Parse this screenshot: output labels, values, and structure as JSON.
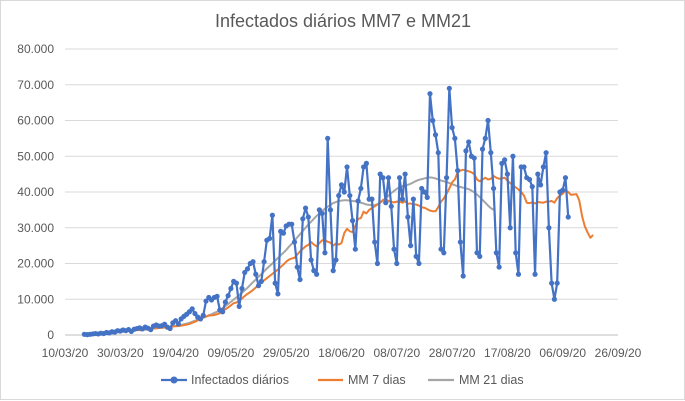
{
  "chart_data": {
    "type": "line",
    "title": "Infectados diários MM7 e MM21",
    "xlabel": "",
    "ylabel": "",
    "x_tick_labels": [
      "10/03/20",
      "30/03/20",
      "19/04/20",
      "09/05/20",
      "29/05/20",
      "18/06/20",
      "08/07/20",
      "28/07/20",
      "17/08/20",
      "06/09/20",
      "26/09/20"
    ],
    "y_tick_labels": [
      "0",
      "10.000",
      "20.000",
      "30.000",
      "40.000",
      "50.000",
      "60.000",
      "70.000",
      "80.000"
    ],
    "ylim": [
      0,
      80000
    ],
    "x_range": [
      "2020-03-10",
      "2020-09-26"
    ],
    "grid": true,
    "legend_position": "bottom",
    "colors": {
      "daily": "#4472C4",
      "mm7": "#ED7D31",
      "mm21": "#A5A5A5"
    },
    "series": [
      {
        "name": "Infectados diários",
        "marker": "circle",
        "start_date": "2020-03-17",
        "values": [
          200,
          100,
          200,
          300,
          400,
          300,
          500,
          400,
          700,
          600,
          900,
          800,
          1200,
          1100,
          1400,
          1200,
          1500,
          1000,
          1600,
          1800,
          2000,
          1700,
          2200,
          1900,
          1500,
          2500,
          2800,
          2500,
          2600,
          3000,
          2200,
          1800,
          3400,
          4000,
          3100,
          4500,
          5200,
          5800,
          6500,
          7300,
          6000,
          5000,
          4500,
          5500,
          9500,
          10500,
          9800,
          10500,
          10800,
          7000,
          6500,
          9200,
          11000,
          13000,
          15000,
          14500,
          8000,
          13000,
          17500,
          18500,
          20000,
          20500,
          17000,
          13800,
          15000,
          20500,
          26500,
          27000,
          33500,
          14500,
          11500,
          29000,
          28500,
          30500,
          31000,
          31000,
          26000,
          19000,
          15500,
          32500,
          35500,
          33000,
          21000,
          18000,
          17000,
          35000,
          34000,
          23000,
          55000,
          35000,
          18000,
          21000,
          39000,
          42000,
          40000,
          47000,
          39000,
          32000,
          24000,
          37500,
          41000,
          47000,
          48000,
          38000,
          38000,
          26000,
          20000,
          45000,
          44000,
          37000,
          44000,
          36000,
          24000,
          20000,
          44000,
          38000,
          45000,
          33000,
          25000,
          38000,
          22000,
          20000,
          41000,
          40000,
          38500,
          67500,
          60000,
          56000,
          51000,
          24000,
          23000,
          44000,
          69000,
          58000,
          55000,
          46000,
          26000,
          16500,
          51500,
          54000,
          50000,
          49500,
          23000,
          22000,
          52000,
          55000,
          60000,
          51000,
          41000,
          23000,
          19000,
          48000,
          49000,
          45000,
          30000,
          50000,
          23000,
          17000,
          47000,
          47000,
          44000,
          43500,
          41500,
          17000,
          45000,
          42000,
          47000,
          51000,
          30000,
          14500,
          10000,
          14500,
          40000,
          40500,
          44000,
          33000
        ]
      },
      {
        "name": "MM 7 dias",
        "start_date": "2020-03-23",
        "values": [
          300,
          350,
          400,
          450,
          550,
          650,
          750,
          850,
          950,
          1050,
          1150,
          1200,
          1300,
          1350,
          1400,
          1500,
          1600,
          1700,
          1750,
          1800,
          1900,
          2000,
          2050,
          2100,
          2200,
          2300,
          2400,
          2450,
          2500,
          2600,
          2750,
          2900,
          3100,
          3400,
          3700,
          4100,
          4500,
          4900,
          5200,
          5400,
          5500,
          5600,
          5800,
          6100,
          6700,
          7200,
          7700,
          8300,
          8900,
          9100,
          9500,
          10200,
          10900,
          11500,
          12000,
          12600,
          13300,
          13900,
          14600,
          15300,
          15900,
          16500,
          17100,
          17700,
          18300,
          19000,
          19700,
          20500,
          21100,
          21400,
          21600,
          22500,
          23400,
          24100,
          24800,
          25200,
          26000,
          25300,
          24800,
          25700,
          26500,
          26500,
          26100,
          25800,
          25000,
          25600,
          25300,
          25700,
          28500,
          29700,
          29000,
          28800,
          30500,
          32500,
          32700,
          34500,
          34000,
          35000,
          35500,
          36000,
          36500,
          37000,
          37800,
          38000,
          37500,
          37200,
          37100,
          37300,
          37300,
          37000,
          37400,
          36700,
          36800,
          36500,
          36500,
          36200,
          35700,
          35600,
          35200,
          34800,
          34600,
          34600,
          35800,
          37300,
          38200,
          39500,
          41000,
          42700,
          43500,
          45500,
          46000,
          46200,
          46000,
          45800,
          45500,
          45000,
          43500,
          43000,
          43500,
          44000,
          43500,
          43700,
          44500,
          44000,
          43700,
          43800,
          44000,
          43200,
          42500,
          41800,
          41300,
          40700,
          40000,
          39000,
          37000,
          36900,
          37100,
          36800,
          37200,
          37100,
          37000,
          37300,
          37300,
          37500,
          37000,
          38300,
          39000,
          39500,
          40500,
          40000,
          39200,
          39300,
          39400,
          37600,
          33300,
          30400,
          28700,
          27200,
          28000
        ]
      },
      {
        "name": "MM 21 dias",
        "start_date": "2020-04-06",
        "values": [
          1300,
          1400,
          1500,
          1600,
          1700,
          1800,
          1900,
          1950,
          2000,
          2100,
          2200,
          2300,
          2400,
          2500,
          2600,
          2800,
          3000,
          3200,
          3400,
          3700,
          4000,
          4300,
          4500,
          4800,
          5100,
          5500,
          5800,
          6200,
          6500,
          7000,
          7500,
          8100,
          8700,
          9300,
          9900,
          10500,
          11200,
          11800,
          12500,
          13200,
          14000,
          14800,
          15500,
          16300,
          17000,
          17800,
          18600,
          19300,
          20000,
          20800,
          21500,
          22300,
          23000,
          23800,
          24700,
          25500,
          26400,
          27300,
          28200,
          29100,
          30000,
          30900,
          31700,
          32500,
          33300,
          34000,
          34700,
          35300,
          35900,
          36400,
          36900,
          37200,
          37500,
          37600,
          37700,
          37700,
          37600,
          37500,
          37400,
          37200,
          37000,
          36800,
          36500,
          36400,
          36300,
          36300,
          36600,
          37000,
          37600,
          38200,
          39000,
          39700,
          40300,
          40900,
          41300,
          41600,
          41800,
          42000,
          42300,
          42700,
          43100,
          43400,
          43600,
          43800,
          44000,
          44100,
          44000,
          43800,
          43500,
          43200,
          43000,
          42800,
          42500,
          42200,
          41900,
          41600,
          41400,
          41200,
          41000,
          40800,
          40400,
          39900,
          39300,
          38600,
          37800,
          37000,
          36200,
          35500,
          35000
        ]
      }
    ]
  }
}
